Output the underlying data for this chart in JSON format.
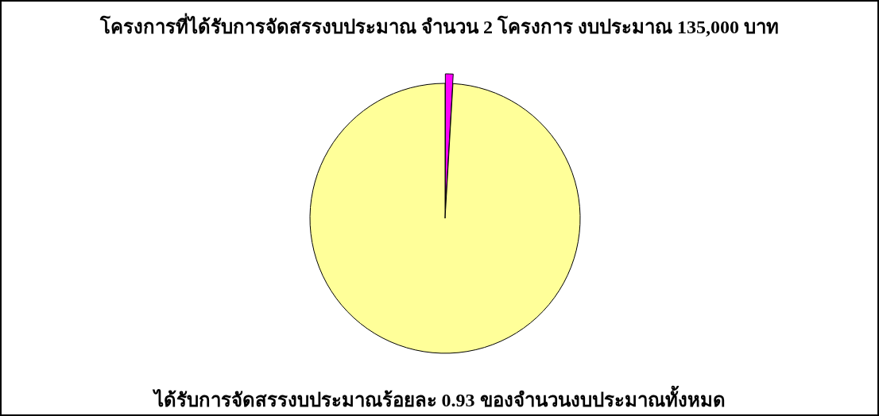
{
  "chart_data": {
    "type": "pie",
    "title": "โครงการที่ได้รับการจัดสรรงบประมาณ จำนวน 2 โครงการ งบประมาณ 135,000 บาท",
    "categories": [
      null,
      null
    ],
    "values": [
      0.93,
      99.07
    ],
    "colors": [
      "#ff00ff",
      "#ffff99"
    ],
    "annotations": [
      "ได้รับการจัดสรรงบประมาณร้อยละ 0.93 ของจำนวนงบประมาณทั้งหมด"
    ]
  }
}
